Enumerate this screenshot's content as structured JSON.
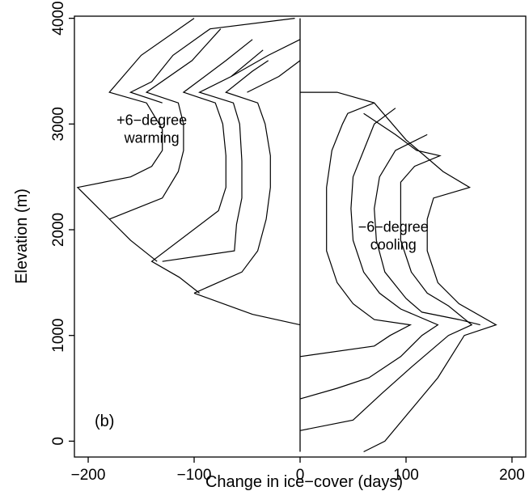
{
  "chart_data": {
    "type": "line",
    "xlabel": "Change in ice−cover (days)",
    "ylabel": "Elevation (m)",
    "xlim": [
      -213,
      213
    ],
    "ylim": [
      -150,
      4020
    ],
    "x_ticks": [
      -200,
      -100,
      0,
      100,
      200
    ],
    "x_tick_labels": [
      "−200",
      "−100",
      "0",
      "100",
      "200"
    ],
    "y_ticks": [
      0,
      1000,
      2000,
      3000,
      4000
    ],
    "y_tick_labels": [
      "0",
      "1000",
      "2000",
      "3000",
      "4000"
    ],
    "grid": false,
    "legend": "none",
    "panel_label": "(b)",
    "annotations": [
      {
        "lines": [
          "+6−degree",
          "warming"
        ],
        "x": -140,
        "y": 2990
      },
      {
        "lines": [
          "−6−degree",
          "cooling"
        ],
        "x": 88,
        "y": 1980
      }
    ],
    "series": [
      {
        "group": "warming",
        "points": [
          [
            -100,
            4000
          ],
          [
            -150,
            3650
          ],
          [
            -180,
            3300
          ],
          [
            -145,
            3200
          ],
          [
            -130,
            2950
          ],
          [
            -130,
            2750
          ],
          [
            -140,
            2600
          ],
          [
            -160,
            2500
          ],
          [
            -210,
            2400
          ],
          [
            -195,
            2250
          ],
          [
            -175,
            2050
          ],
          [
            -160,
            1900
          ],
          [
            -135,
            1700
          ]
        ]
      },
      {
        "group": "warming",
        "points": [
          [
            -75,
            3900
          ],
          [
            -102,
            3600
          ],
          [
            -145,
            3300
          ],
          [
            -115,
            3200
          ],
          [
            -110,
            3000
          ],
          [
            -110,
            2750
          ],
          [
            -115,
            2550
          ],
          [
            -130,
            2300
          ],
          [
            -180,
            2100
          ]
        ]
      },
      {
        "group": "warming",
        "points": [
          [
            -45,
            3800
          ],
          [
            -70,
            3600
          ],
          [
            -110,
            3300
          ],
          [
            -80,
            3200
          ],
          [
            -73,
            3000
          ],
          [
            -70,
            2700
          ],
          [
            -70,
            2400
          ],
          [
            -77,
            2180
          ],
          [
            -140,
            1700
          ],
          [
            -114,
            1550
          ],
          [
            -95,
            1400
          ]
        ]
      },
      {
        "group": "warming",
        "points": [
          [
            -35,
            3700
          ],
          [
            -65,
            3450
          ],
          [
            -95,
            3300
          ],
          [
            -63,
            3200
          ],
          [
            -57,
            3000
          ],
          [
            -55,
            2650
          ],
          [
            -55,
            2300
          ],
          [
            -60,
            2050
          ],
          [
            -62,
            1800
          ],
          [
            -130,
            1700
          ]
        ]
      },
      {
        "group": "warming",
        "points": [
          [
            -30,
            3600
          ],
          [
            -45,
            3500
          ],
          [
            -70,
            3300
          ],
          [
            -40,
            3200
          ],
          [
            -33,
            3000
          ],
          [
            -28,
            2700
          ],
          [
            -28,
            2400
          ],
          [
            -32,
            2100
          ],
          [
            -40,
            1800
          ],
          [
            -55,
            1600
          ],
          [
            -100,
            1400
          ]
        ]
      },
      {
        "group": "warming",
        "points": [
          [
            -5,
            4000
          ],
          [
            -85,
            3900
          ],
          [
            -120,
            3650
          ],
          [
            -140,
            3400
          ],
          [
            -160,
            3300
          ],
          [
            -130,
            3200
          ]
        ]
      },
      {
        "group": "warming",
        "points": [
          [
            0,
            3600
          ],
          [
            -20,
            3450
          ],
          [
            -50,
            3300
          ]
        ]
      },
      {
        "group": "warming",
        "points": [
          [
            0,
            3800
          ],
          [
            -30,
            3650
          ],
          [
            -65,
            3450
          ]
        ]
      },
      {
        "group": "warming",
        "points": [
          [
            -100,
            1400
          ],
          [
            -45,
            1200
          ],
          [
            0,
            1100
          ]
        ]
      },
      {
        "group": "cooling",
        "points": [
          [
            0,
            3300
          ],
          [
            35,
            3300
          ],
          [
            70,
            3200
          ],
          [
            100,
            2850
          ],
          [
            135,
            2550
          ],
          [
            160,
            2400
          ],
          [
            126,
            2300
          ],
          [
            120,
            2100
          ],
          [
            120,
            1800
          ],
          [
            130,
            1500
          ],
          [
            150,
            1300
          ],
          [
            185,
            1100
          ],
          [
            155,
            1000
          ],
          [
            130,
            600
          ],
          [
            105,
            300
          ],
          [
            80,
            0
          ],
          [
            60,
            -100
          ]
        ]
      },
      {
        "group": "cooling",
        "points": [
          [
            60,
            3100
          ],
          [
            90,
            2900
          ],
          [
            110,
            2750
          ],
          [
            132,
            2700
          ],
          [
            108,
            2600
          ],
          [
            95,
            2450
          ],
          [
            95,
            2200
          ],
          [
            95,
            1900
          ],
          [
            105,
            1600
          ],
          [
            120,
            1400
          ],
          [
            140,
            1280
          ],
          [
            162,
            1100
          ],
          [
            140,
            1000
          ],
          [
            105,
            700
          ],
          [
            77,
            450
          ],
          [
            50,
            200
          ],
          [
            0,
            100
          ]
        ]
      },
      {
        "group": "cooling",
        "points": [
          [
            70,
            3200
          ],
          [
            45,
            3100
          ],
          [
            40,
            3000
          ],
          [
            30,
            2750
          ],
          [
            25,
            2400
          ],
          [
            25,
            2100
          ],
          [
            25,
            1800
          ],
          [
            35,
            1500
          ],
          [
            50,
            1300
          ],
          [
            70,
            1150
          ],
          [
            104,
            1100
          ],
          [
            85,
            1000
          ],
          [
            70,
            900
          ],
          [
            0,
            800
          ]
        ]
      },
      {
        "group": "cooling",
        "points": [
          [
            90,
            3150
          ],
          [
            70,
            3000
          ],
          [
            60,
            2750
          ],
          [
            50,
            2500
          ],
          [
            48,
            2200
          ],
          [
            50,
            1900
          ],
          [
            60,
            1600
          ],
          [
            75,
            1400
          ],
          [
            95,
            1250
          ],
          [
            130,
            1100
          ],
          [
            115,
            1000
          ],
          [
            95,
            800
          ],
          [
            65,
            600
          ],
          [
            35,
            500
          ],
          [
            0,
            400
          ]
        ]
      },
      {
        "group": "cooling",
        "points": [
          [
            120,
            2900
          ],
          [
            90,
            2750
          ],
          [
            75,
            2500
          ],
          [
            70,
            2200
          ],
          [
            72,
            1900
          ],
          [
            80,
            1600
          ],
          [
            100,
            1350
          ],
          [
            115,
            1220
          ],
          [
            150,
            1150
          ],
          [
            170,
            1100
          ]
        ]
      }
    ]
  }
}
